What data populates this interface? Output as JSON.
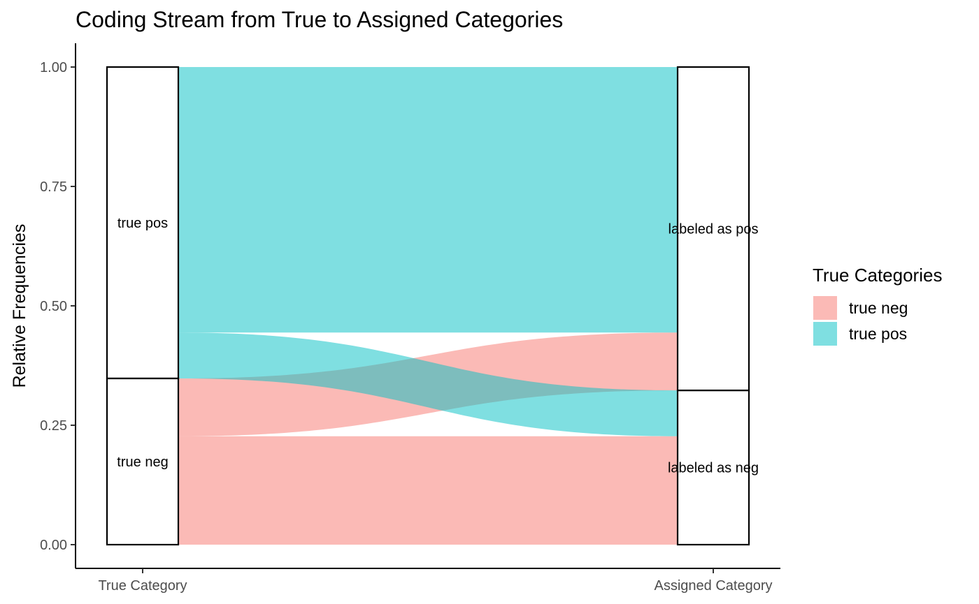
{
  "chart_data": {
    "type": "alluvial",
    "title": "Coding Stream from True to Assigned Categories",
    "xlabel": "",
    "ylabel": "Relative Frequencies",
    "ylim": [
      0,
      1
    ],
    "y_ticks": [
      "0.00",
      "0.25",
      "0.50",
      "0.75",
      "1.00"
    ],
    "y_tick_values": [
      0,
      0.25,
      0.5,
      0.75,
      1.0
    ],
    "axes": [
      "True Category",
      "Assigned Category"
    ],
    "strata": {
      "True Category": [
        {
          "label": "true neg",
          "from": 0.0,
          "to": 0.348
        },
        {
          "label": "true pos",
          "from": 0.348,
          "to": 1.0
        }
      ],
      "Assigned Category": [
        {
          "label": "labeled as neg",
          "from": 0.0,
          "to": 0.323
        },
        {
          "label": "labeled as pos",
          "from": 0.323,
          "to": 1.0
        }
      ]
    },
    "flows": [
      {
        "fill": "true neg",
        "from": "true neg",
        "to": "labeled as neg",
        "value": 0.227
      },
      {
        "fill": "true neg",
        "from": "true neg",
        "to": "labeled as pos",
        "value": 0.121
      },
      {
        "fill": "true pos",
        "from": "true pos",
        "to": "labeled as neg",
        "value": 0.096
      },
      {
        "fill": "true pos",
        "from": "true pos",
        "to": "labeled as pos",
        "value": 0.556
      }
    ],
    "legend": {
      "title": "True Categories",
      "position": "right",
      "items": [
        {
          "label": "true neg",
          "color": "#F8766D"
        },
        {
          "label": "true pos",
          "color": "#00BFC4"
        }
      ]
    },
    "grid": false
  }
}
